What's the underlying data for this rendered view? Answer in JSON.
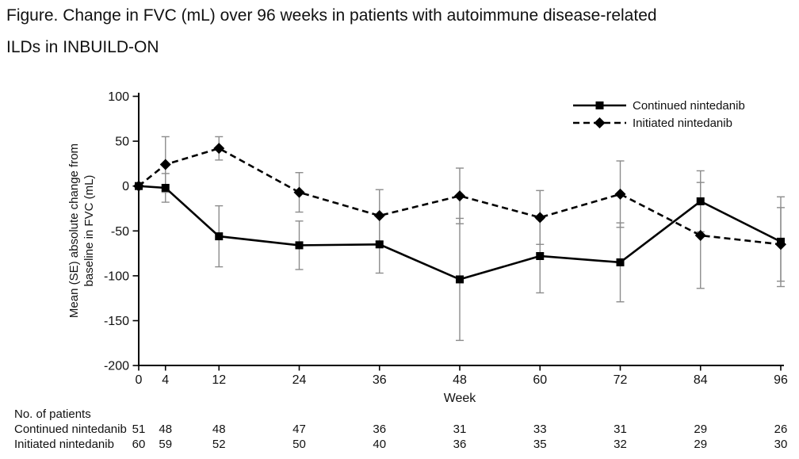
{
  "figure_title": {
    "line1": "Figure. Change in FVC (mL) over 96 weeks in patients with autoimmune disease-related",
    "line2": "ILDs in INBUILD-ON"
  },
  "chart_data": {
    "type": "line",
    "x": [
      0,
      4,
      12,
      24,
      36,
      48,
      60,
      72,
      84,
      96
    ],
    "xlabel": "Week",
    "ylabel_line1": "Mean (SE) absolute change from",
    "ylabel_line2": "baseline in FVC (mL)",
    "ylim": [
      -200,
      100
    ],
    "yticks": [
      100,
      50,
      0,
      -50,
      -100,
      -150,
      -200
    ],
    "grid": false,
    "legend_position": "top-right",
    "line_color": "#000000",
    "error_bar_color": "#8c8c8c",
    "series": [
      {
        "name": "Continued nintedanib",
        "marker": "square",
        "line": "solid",
        "values": [
          0,
          -2,
          -56,
          -66,
          -65,
          -104,
          -78,
          -85,
          -17,
          -62
        ],
        "se": [
          0,
          16,
          34,
          27,
          32,
          68,
          41,
          44,
          34,
          50
        ]
      },
      {
        "name": "Initiated nintedanib",
        "marker": "diamond",
        "line": "dashed",
        "values": [
          0,
          24,
          42,
          -7,
          -33,
          -11,
          -35,
          -9,
          -55,
          -65
        ],
        "se": [
          0,
          31,
          13,
          22,
          29,
          31,
          30,
          37,
          59,
          41
        ]
      }
    ]
  },
  "patients_table": {
    "header": "No. of patients",
    "weeks": [
      0,
      4,
      12,
      24,
      36,
      48,
      60,
      72,
      84,
      96
    ],
    "rows": [
      {
        "label": "Continued nintedanib",
        "counts": [
          51,
          48,
          48,
          47,
          36,
          31,
          33,
          31,
          29,
          26
        ]
      },
      {
        "label": "Initiated nintedanib",
        "counts": [
          60,
          59,
          52,
          50,
          40,
          36,
          35,
          32,
          29,
          30
        ]
      }
    ]
  }
}
